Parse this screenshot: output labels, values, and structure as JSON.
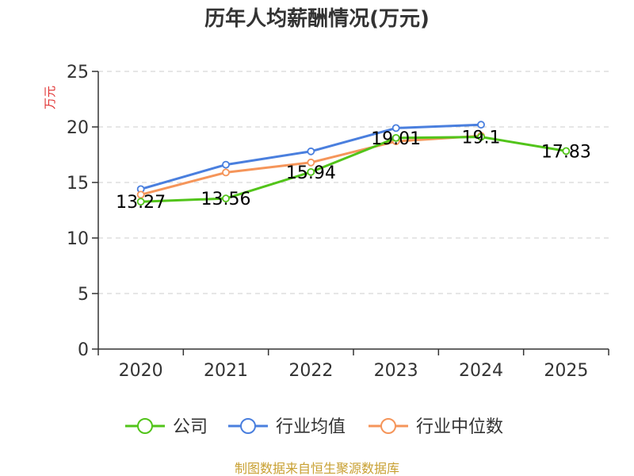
{
  "chart_data": {
    "type": "line",
    "title": "历年人均薪酬情况(万元)",
    "ylabel": "万元",
    "xlabel": "",
    "categories": [
      "2020",
      "2021",
      "2022",
      "2023",
      "2024",
      "2025"
    ],
    "ylim": [
      0,
      25
    ],
    "yticks": [
      0,
      5,
      10,
      15,
      20,
      25
    ],
    "grid": true,
    "legend_position": "bottom",
    "series": [
      {
        "name": "公司",
        "color": "#52c41a",
        "values": [
          13.27,
          13.56,
          15.94,
          19.01,
          19.1,
          17.83
        ],
        "labels": [
          "13.27",
          "13.56",
          "15.94",
          "19.01",
          "19.1",
          "17.83"
        ]
      },
      {
        "name": "行业均值",
        "color": "#4a7fde",
        "values": [
          14.4,
          16.6,
          17.8,
          19.9,
          20.2,
          null
        ]
      },
      {
        "name": "行业中位数",
        "color": "#f5955a",
        "values": [
          13.9,
          15.9,
          16.8,
          18.7,
          19.2,
          null
        ]
      }
    ]
  },
  "source": "制图数据来自恒生聚源数据库",
  "colors": {
    "axis": "#333333",
    "grid": "#cccccc",
    "ylabel": "#e03131",
    "source": "#c8a032"
  }
}
